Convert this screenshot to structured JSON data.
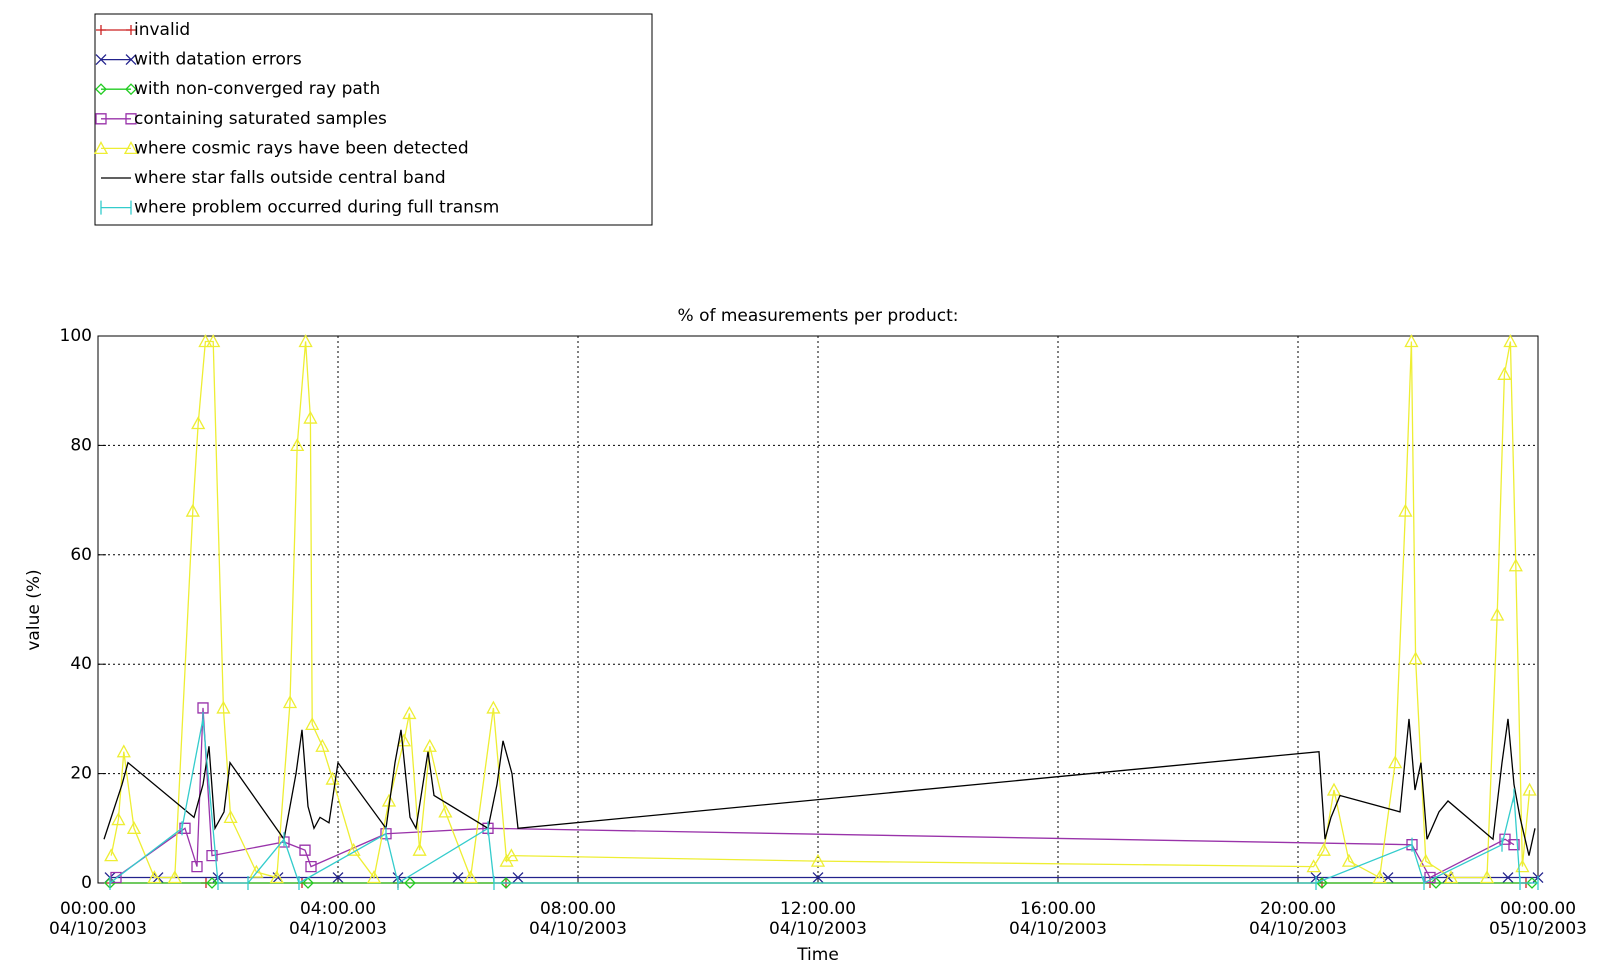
{
  "chart_data": {
    "type": "line",
    "title": "% of measurements per product:",
    "xlabel": "Time",
    "ylabel": "value (%)",
    "xlim": [
      0,
      24
    ],
    "ylim": [
      0,
      100
    ],
    "xticks": [
      {
        "value": 0,
        "label": "00:00.00\n04/10/2003"
      },
      {
        "value": 4,
        "label": "04:00.00\n04/10/2003"
      },
      {
        "value": 8,
        "label": "08:00.00\n04/10/2003"
      },
      {
        "value": 12,
        "label": "12:00.00\n04/10/2003"
      },
      {
        "value": 16,
        "label": "16:00.00\n04/10/2003"
      },
      {
        "value": 20,
        "label": "20:00.00\n04/10/2003"
      },
      {
        "value": 24,
        "label": "00:00.00\n05/10/2003"
      }
    ],
    "yticks": [
      0,
      20,
      40,
      60,
      80,
      100
    ],
    "grid": true,
    "legend": "top-left",
    "series": [
      {
        "name": "invalid",
        "color": "#cc2222",
        "marker": "plus",
        "x": [
          0.2,
          1.8,
          3.4,
          5.0,
          6.8,
          20.4,
          22.2,
          23.8
        ],
        "values": [
          0,
          0,
          0,
          0,
          0,
          0,
          0,
          0
        ]
      },
      {
        "name": "with datation errors",
        "color": "#22228c",
        "marker": "cross",
        "x": [
          0.2,
          1.0,
          2.0,
          3.0,
          4.0,
          5.0,
          6.0,
          7.0,
          12.0,
          20.3,
          21.5,
          22.5,
          23.5,
          24.0
        ],
        "values": [
          1,
          1,
          1,
          1,
          1,
          1,
          1,
          1,
          1,
          1,
          1,
          1,
          1,
          1
        ]
      },
      {
        "name": "with non-converged ray path",
        "color": "#22cc22",
        "marker": "diamond",
        "x": [
          0.2,
          1.9,
          3.5,
          5.2,
          6.8,
          20.4,
          22.3,
          23.9
        ],
        "values": [
          0,
          0,
          0,
          0,
          0,
          0,
          0,
          0
        ]
      },
      {
        "name": "containing saturated samples",
        "color": "#9933aa",
        "marker": "square",
        "x": [
          0.3,
          1.45,
          1.65,
          1.75,
          1.9,
          3.1,
          3.45,
          3.55,
          4.8,
          6.5,
          21.9,
          22.2,
          23.45,
          23.6
        ],
        "values": [
          1,
          10,
          3,
          32,
          5,
          7.5,
          6,
          3,
          9,
          10,
          7,
          1,
          8,
          7
        ]
      },
      {
        "name": "where cosmic rays have been detected",
        "color": "#eeee33",
        "marker": "triangle",
        "x": [
          0.22,
          0.34,
          0.43,
          0.6,
          0.94,
          1.28,
          1.58,
          1.67,
          1.79,
          1.92,
          2.09,
          2.21,
          2.64,
          2.98,
          3.2,
          3.32,
          3.46,
          3.54,
          3.57,
          3.74,
          3.91,
          4.26,
          4.6,
          4.85,
          5.1,
          5.19,
          5.36,
          5.53,
          5.79,
          6.21,
          6.59,
          6.81,
          6.89,
          12.0,
          20.26,
          20.43,
          20.6,
          20.85,
          21.36,
          21.62,
          21.79,
          21.89,
          21.96,
          22.13,
          22.55,
          23.15,
          23.32,
          23.44,
          23.54,
          23.63,
          23.74,
          23.86
        ],
        "values": [
          5,
          11.6,
          24,
          10,
          1,
          1,
          68,
          84,
          99,
          99,
          32,
          12,
          2,
          1,
          33,
          80,
          99,
          85,
          29,
          25,
          19,
          6,
          1,
          15,
          26,
          31,
          6,
          25,
          13,
          1,
          32,
          4,
          5,
          4,
          3,
          6,
          17,
          4,
          1,
          22,
          68,
          99,
          41,
          4,
          1,
          1,
          49,
          93,
          99,
          58,
          3,
          17
        ]
      },
      {
        "name": "where star falls outside central band",
        "color": "#000000",
        "marker": "none",
        "x": [
          0.1,
          0.4,
          0.5,
          1.6,
          1.75,
          1.85,
          1.95,
          2.1,
          2.2,
          3.1,
          3.3,
          3.4,
          3.5,
          3.6,
          3.7,
          3.85,
          4.0,
          4.8,
          4.95,
          5.05,
          5.2,
          5.3,
          5.5,
          5.6,
          6.5,
          6.65,
          6.75,
          6.9,
          7.0,
          20.35,
          20.45,
          20.55,
          20.7,
          21.7,
          21.85,
          21.95,
          22.05,
          22.15,
          22.35,
          22.5,
          23.25,
          23.4,
          23.5,
          23.6,
          23.7,
          23.85,
          23.95
        ],
        "values": [
          8,
          18,
          22,
          12,
          18,
          25,
          10,
          13,
          22,
          8,
          20,
          28,
          14,
          10,
          12,
          11,
          22,
          10,
          22,
          28,
          12,
          10,
          24,
          16,
          10,
          18,
          26,
          20,
          10,
          24,
          8,
          12,
          16,
          13,
          30,
          17,
          22,
          8,
          13,
          15,
          8,
          22,
          30,
          18,
          12,
          5,
          10
        ]
      },
      {
        "name": "where problem occurred during full transm",
        "color": "#33cccc",
        "marker": "bar",
        "x": [
          0.2,
          1.4,
          1.75,
          2.0,
          2.5,
          3.1,
          3.35,
          4.8,
          5.0,
          6.5,
          6.6,
          20.3,
          21.9,
          22.1,
          23.4,
          23.6,
          23.7,
          24.0
        ],
        "values": [
          0,
          10,
          30,
          0,
          0,
          8,
          0,
          9,
          0,
          10,
          0,
          0,
          7,
          0,
          7,
          16,
          0,
          0
        ]
      }
    ]
  }
}
